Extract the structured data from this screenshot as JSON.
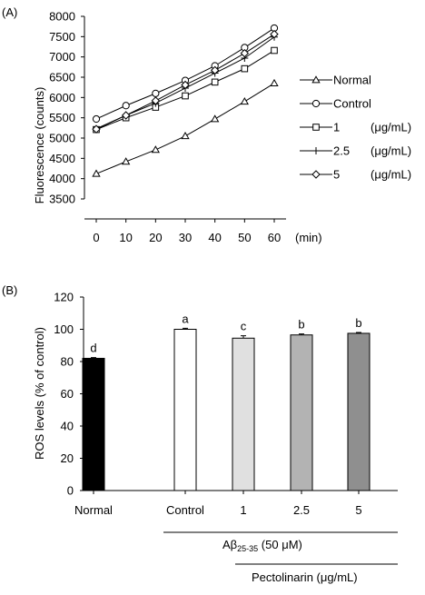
{
  "chart_data": [
    {
      "panel_label": "(A)",
      "type": "line",
      "ylabel": "Fluorescence (counts)",
      "x_unit": "(min)",
      "x": [
        0,
        10,
        20,
        30,
        40,
        50,
        60
      ],
      "xticks": [
        "0",
        "10",
        "20",
        "30",
        "40",
        "50",
        "60"
      ],
      "ylim": [
        3500,
        8000
      ],
      "yticks": [
        "3500",
        "4000",
        "4500",
        "5000",
        "5500",
        "6000",
        "6500",
        "7000",
        "7500",
        "8000"
      ],
      "legend_position": "right",
      "series": [
        {
          "name": "Normal",
          "unit": "",
          "marker": "triangle",
          "values": [
            4120,
            4420,
            4710,
            5050,
            5470,
            5900,
            6350
          ]
        },
        {
          "name": "Control",
          "unit": "",
          "marker": "circle",
          "values": [
            5470,
            5800,
            6100,
            6420,
            6780,
            7230,
            7710
          ]
        },
        {
          "name": "1",
          "unit": "(μg/mL)",
          "marker": "square",
          "values": [
            5210,
            5500,
            5760,
            6040,
            6380,
            6710,
            7160
          ]
        },
        {
          "name": "2.5",
          "unit": "(μg/mL)",
          "marker": "plus",
          "values": [
            5230,
            5560,
            5860,
            6230,
            6600,
            6970,
            7490
          ]
        },
        {
          "name": "5",
          "unit": "(μg/mL)",
          "marker": "diamond",
          "values": [
            5220,
            5560,
            5920,
            6310,
            6670,
            7090,
            7560
          ]
        }
      ]
    },
    {
      "panel_label": "(B)",
      "type": "bar",
      "ylabel": "ROS levels (% of control)",
      "categories": [
        "Normal",
        "Control",
        "1",
        "2.5",
        "5"
      ],
      "values": [
        82,
        100,
        94.5,
        96.5,
        97.5
      ],
      "errors": [
        0.5,
        0.6,
        1.5,
        0.6,
        0.5
      ],
      "significance": [
        "d",
        "a",
        "c",
        "b",
        "b"
      ],
      "colors": [
        "#000000",
        "#ffffff",
        "#e0e0e0",
        "#b3b3b3",
        "#8f8f8f"
      ],
      "ylim": [
        0,
        120
      ],
      "yticks": [
        "0",
        "20",
        "40",
        "60",
        "80",
        "100",
        "120"
      ],
      "group_label_main": "Aβ",
      "group_label_sub": "25-35",
      "group_label_rest": " (50 μM)",
      "group_label_2": "Pectolinarin (μg/mL)"
    }
  ]
}
